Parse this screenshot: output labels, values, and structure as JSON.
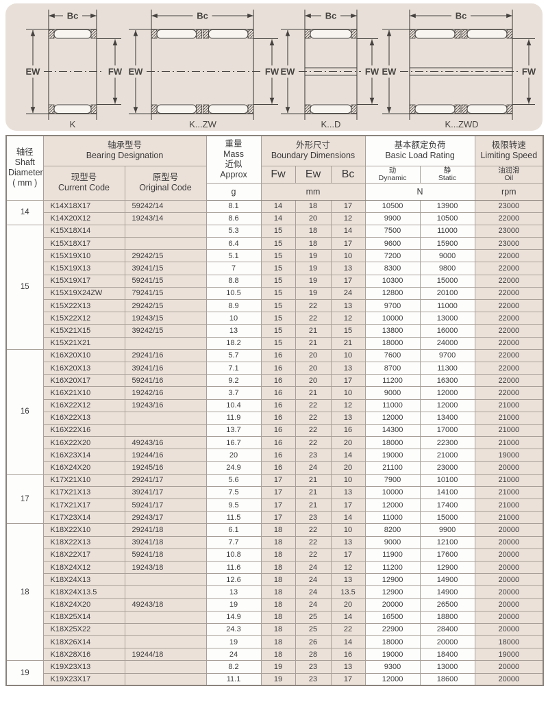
{
  "colors": {
    "panel_bg": "#e8e0d8",
    "cell_tan": "#ebe1d9",
    "cell_white": "#fdfdfc",
    "grid": "#a8a098",
    "strong_border": "#8a837c",
    "text": "#3a3a3a",
    "diagram_line": "#45423f"
  },
  "diagrams": {
    "dim_labels": {
      "bc": "Bc",
      "ew": "EW",
      "fw": "FW"
    },
    "items": [
      {
        "label": "K",
        "rollers": "single",
        "shaft_lines": false
      },
      {
        "label": "K...ZW",
        "rollers": "double",
        "shaft_lines": false
      },
      {
        "label": "K...D",
        "rollers": "single",
        "shaft_lines": true
      },
      {
        "label": "K...ZWD",
        "rollers": "double",
        "shaft_lines": true
      }
    ]
  },
  "table": {
    "headers": {
      "shaft": {
        "zh": "轴径",
        "en1": "Shaft",
        "en2": "Diameter",
        "en3": "( mm )"
      },
      "designation": {
        "zh": "轴承型号",
        "en": "Bearing Designation"
      },
      "current": {
        "zh": "现型号",
        "en": "Current Code"
      },
      "original": {
        "zh": "原型号",
        "en": "Original Code"
      },
      "mass": {
        "zh": "重量",
        "en": "Mass",
        "zh2": "近似",
        "en2": "Approx",
        "unit": "g"
      },
      "boundary": {
        "zh": "外形尺寸",
        "en": "Boundary Dimensions",
        "fw": "Fw",
        "ew": "Ew",
        "bc": "Bc",
        "unit": "mm"
      },
      "load": {
        "zh": "基本额定负荷",
        "en": "Basic Load Rating",
        "dynamic_zh": "动",
        "dynamic_en": "Dynamic",
        "static_zh": "静",
        "static_en": "Static",
        "unit": "N"
      },
      "speed": {
        "zh": "极限转速",
        "en": "Limiting Speed",
        "oil_zh": "油润滑",
        "oil_en": "Oil",
        "unit": "rpm"
      }
    },
    "groups": [
      {
        "diameter": "14",
        "rows": [
          [
            "K14X18X17",
            "59242/14",
            "8.1",
            "14",
            "18",
            "17",
            "10500",
            "13900",
            "23000"
          ],
          [
            "K14X20X12",
            "19243/14",
            "8.6",
            "14",
            "20",
            "12",
            "9900",
            "10500",
            "22000"
          ]
        ]
      },
      {
        "diameter": "15",
        "rows": [
          [
            "K15X18X14",
            "",
            "5.3",
            "15",
            "18",
            "14",
            "7500",
            "11000",
            "23000"
          ],
          [
            "K15X18X17",
            "",
            "6.4",
            "15",
            "18",
            "17",
            "9600",
            "15900",
            "23000"
          ],
          [
            "K15X19X10",
            "29242/15",
            "5.1",
            "15",
            "19",
            "10",
            "7200",
            "9000",
            "22000"
          ],
          [
            "K15X19X13",
            "39241/15",
            "7",
            "15",
            "19",
            "13",
            "8300",
            "9800",
            "22000"
          ],
          [
            "K15X19X17",
            "59241/15",
            "8.8",
            "15",
            "19",
            "17",
            "10300",
            "15000",
            "22000"
          ],
          [
            "K15X19X24ZW",
            "79241/15",
            "10.5",
            "15",
            "19",
            "24",
            "12800",
            "20100",
            "22000"
          ],
          [
            "K15X22X13",
            "29242/15",
            "8.9",
            "15",
            "22",
            "13",
            "9700",
            "11000",
            "22000"
          ],
          [
            "K15X22X12",
            "19243/15",
            "10",
            "15",
            "22",
            "12",
            "10000",
            "13000",
            "22000"
          ],
          [
            "K15X21X15",
            "39242/15",
            "13",
            "15",
            "21",
            "15",
            "13800",
            "16000",
            "22000"
          ],
          [
            "K15X21X21",
            "",
            "18.2",
            "15",
            "21",
            "21",
            "18000",
            "24000",
            "22000"
          ]
        ]
      },
      {
        "diameter": "16",
        "rows": [
          [
            "K16X20X10",
            "29241/16",
            "5.7",
            "16",
            "20",
            "10",
            "7600",
            "9700",
            "22000"
          ],
          [
            "K16X20X13",
            "39241/16",
            "7.1",
            "16",
            "20",
            "13",
            "8700",
            "11300",
            "22000"
          ],
          [
            "K16X20X17",
            "59241/16",
            "9.2",
            "16",
            "20",
            "17",
            "11200",
            "16300",
            "22000"
          ],
          [
            "K16X21X10",
            "19242/16",
            "3.7",
            "16",
            "21",
            "10",
            "9000",
            "12000",
            "22000"
          ],
          [
            "K16X22X12",
            "19243/16",
            "10.4",
            "16",
            "22",
            "12",
            "11000",
            "12000",
            "21000"
          ],
          [
            "K16X22X13",
            "",
            "11.9",
            "16",
            "22",
            "13",
            "12000",
            "13400",
            "21000"
          ],
          [
            "K16X22X16",
            "",
            "13.7",
            "16",
            "22",
            "16",
            "14300",
            "17000",
            "21000"
          ],
          [
            "K16X22X20",
            "49243/16",
            "16.7",
            "16",
            "22",
            "20",
            "18000",
            "22300",
            "21000"
          ],
          [
            "K16X23X14",
            "19244/16",
            "20",
            "16",
            "23",
            "14",
            "19000",
            "21000",
            "19000"
          ],
          [
            "K16X24X20",
            "19245/16",
            "24.9",
            "16",
            "24",
            "20",
            "21100",
            "23000",
            "20000"
          ]
        ]
      },
      {
        "diameter": "17",
        "rows": [
          [
            "K17X21X10",
            "29241/17",
            "5.6",
            "17",
            "21",
            "10",
            "7900",
            "10100",
            "21000"
          ],
          [
            "K17X21X13",
            "39241/17",
            "7.5",
            "17",
            "21",
            "13",
            "10000",
            "14100",
            "21000"
          ],
          [
            "K17X21X17",
            "59241/17",
            "9.5",
            "17",
            "21",
            "17",
            "12000",
            "17400",
            "21000"
          ],
          [
            "K17X23X14",
            "29243/17",
            "11.5",
            "17",
            "23",
            "14",
            "11000",
            "15000",
            "21000"
          ]
        ]
      },
      {
        "diameter": "18",
        "rows": [
          [
            "K18X22X10",
            "29241/18",
            "6.1",
            "18",
            "22",
            "10",
            "8200",
            "9900",
            "20000"
          ],
          [
            "K18X22X13",
            "39241/18",
            "7.7",
            "18",
            "22",
            "13",
            "9000",
            "12100",
            "20000"
          ],
          [
            "K18X22X17",
            "59241/18",
            "10.8",
            "18",
            "22",
            "17",
            "11900",
            "17600",
            "20000"
          ],
          [
            "K18X24X12",
            "19243/18",
            "11.6",
            "18",
            "24",
            "12",
            "11200",
            "12900",
            "20000"
          ],
          [
            "K18X24X13",
            "",
            "12.6",
            "18",
            "24",
            "13",
            "12900",
            "14900",
            "20000"
          ],
          [
            "K18X24X13.5",
            "",
            "13",
            "18",
            "24",
            "13.5",
            "12900",
            "14900",
            "20000"
          ],
          [
            "K18X24X20",
            "49243/18",
            "19",
            "18",
            "24",
            "20",
            "20000",
            "26500",
            "20000"
          ],
          [
            "K18X25X14",
            "",
            "14.9",
            "18",
            "25",
            "14",
            "16500",
            "18800",
            "20000"
          ],
          [
            "K18X25X22",
            "",
            "24.3",
            "18",
            "25",
            "22",
            "22900",
            "28400",
            "20000"
          ],
          [
            "K18X26X14",
            "",
            "19",
            "18",
            "26",
            "14",
            "18000",
            "20000",
            "18000"
          ],
          [
            "K18X28X16",
            "19244/18",
            "24",
            "18",
            "28",
            "16",
            "19000",
            "18400",
            "19000"
          ]
        ]
      },
      {
        "diameter": "19",
        "rows": [
          [
            "K19X23X13",
            "",
            "8.2",
            "19",
            "23",
            "13",
            "9300",
            "13000",
            "20000"
          ],
          [
            "K19X23X17",
            "",
            "11.1",
            "19",
            "23",
            "17",
            "12000",
            "18600",
            "20000"
          ]
        ]
      }
    ]
  }
}
